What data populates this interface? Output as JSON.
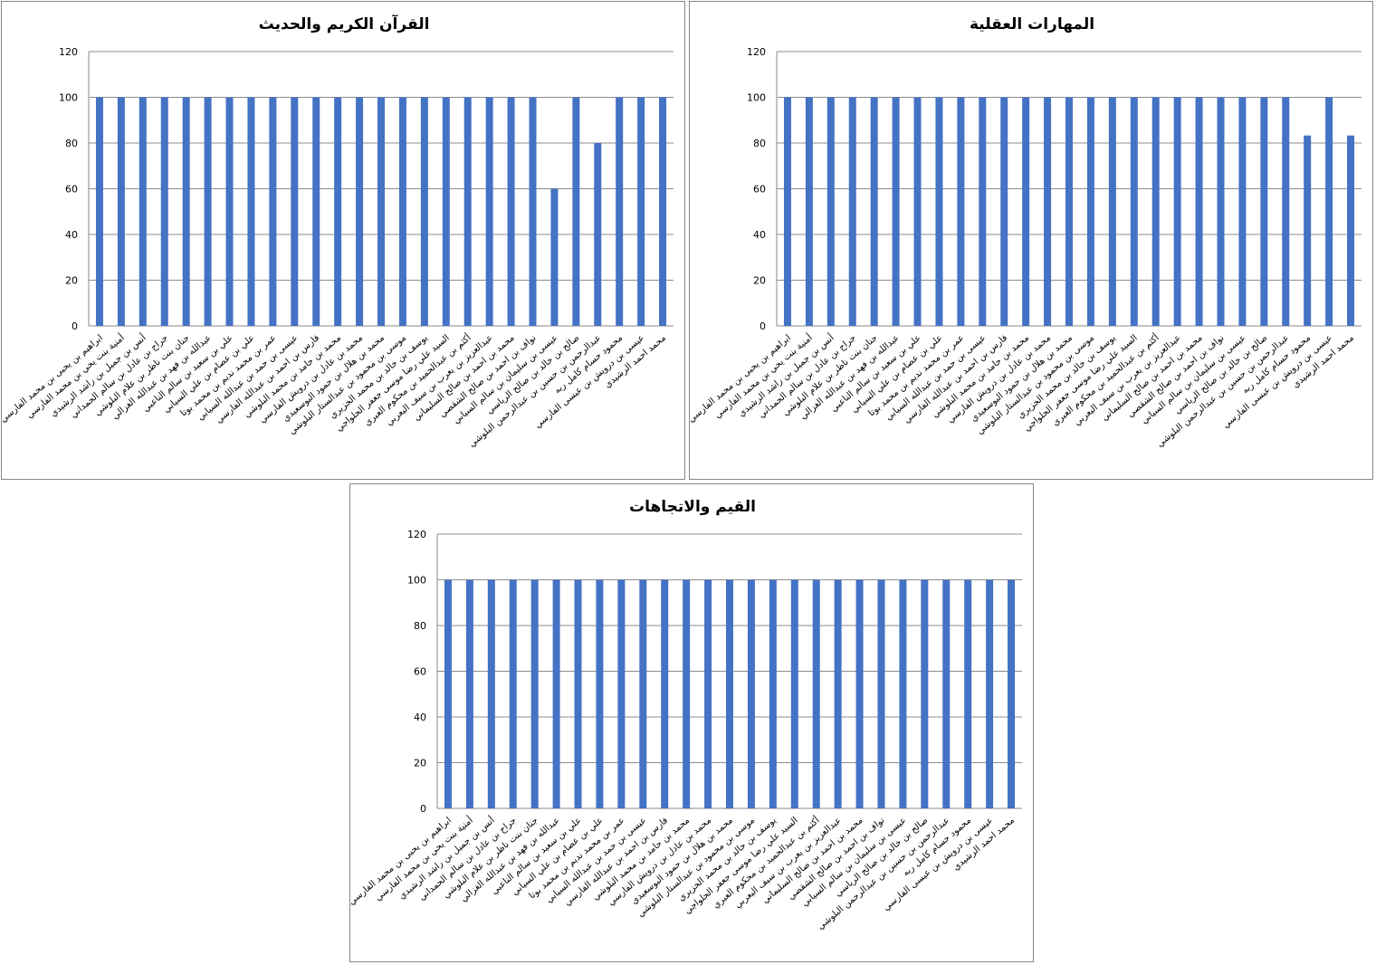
{
  "chart_data": [
    {
      "type": "bar",
      "title": "القرآن الكريم والحديث",
      "ylim": [
        0,
        120
      ],
      "yticks": [
        0,
        20,
        40,
        60,
        80,
        100,
        120
      ],
      "grid": true,
      "color": "#4472C4",
      "categories": [
        "ابراهيم بن يحيى بن محمد الفارسي",
        "أمنية بنت يحي بن محمد الفارسي",
        "أنس بن جميل بن راشد الرشيدي",
        "جراح بن عادل بن سالم الحمداني",
        "جنان بنت ناظر بن علام البلوشي",
        "عبدالله بن فهد بن عبدالله الغزالي",
        "علي بن سعيد بن سالم الناعبي",
        "علي بن عصام بن علي السيابي",
        "عمر بن محمد نديم بن محمد بوتا",
        "عيسى بن حمد بن عبدالله السيابي",
        "فارس بن احمد بن عبدالله الفارسي",
        "محمد بن حامد بن محمد البلوشي",
        "محمد بن عادل بن درويش الفارسي",
        "محمد بن هلال بن حمود البوسعيدي",
        "موسى بن محمود بن عبدالستار البلوشي",
        "يوسف بن خالد بن محمد الخزيري",
        "السيد علي رضا موسى جعفر الحلواجي",
        "أكثم بن عبدالحميد بن محكوم العبري",
        "عبدالعزيز بن يعرب بن سيف اليعربي",
        "محمد بن احمد بن صالح السليماني",
        "نواف بن احمد بن صالح الشقصي",
        "عيسى بن سليمان بن سالم السيابي",
        "صالح بن خالد بن صالح الرياسي",
        "عبدالرحمن بن حسين بن عبدالرحمن البلوشي",
        "محمود حسام كامل ربه",
        "عيسى بن درويش بن عيسى الفارسي",
        "محمد احمد الرشيدي"
      ],
      "values": [
        100,
        100,
        100,
        100,
        100,
        100,
        100,
        100,
        100,
        100,
        100,
        100,
        100,
        100,
        100,
        100,
        100,
        100,
        100,
        100,
        100,
        60,
        100,
        80,
        100,
        100,
        100
      ]
    },
    {
      "type": "bar",
      "title": "المهارات العقلية",
      "ylim": [
        0,
        120
      ],
      "yticks": [
        0,
        20,
        40,
        60,
        80,
        100,
        120
      ],
      "grid": true,
      "color": "#4472C4",
      "categories": [
        "ابراهيم بن يحيى بن محمد الفارسي",
        "أمنية بنت يحي بن محمد الفارسي",
        "أنس بن جميل بن راشد الرشيدي",
        "جراح بن عادل بن سالم الحمداني",
        "جنان بنت ناظر بن علام البلوشي",
        "عبدالله بن فهد بن عبدالله الغزالي",
        "علي بن سعيد بن سالم الناعبي",
        "علي بن عصام بن علي السيابي",
        "عمر بن محمد نديم بن محمد بوتا",
        "عيسى بن حمد بن عبدالله السيابي",
        "فارس بن احمد بن عبدالله الفارسي",
        "محمد بن حامد بن محمد البلوشي",
        "محمد بن عادل بن درويش الفارسي",
        "محمد بن هلال بن حمود البوسعيدي",
        "موسى بن محمود بن عبدالستار البلوشي",
        "يوسف بن خالد بن محمد الخزيري",
        "السيد علي رضا موسى جعفر الحلواجي",
        "أكثم بن عبدالحميد بن محكوم العبري",
        "عبدالعزيز بن يعرب بن سيف اليعربي",
        "محمد بن احمد بن صالح السليماني",
        "نواف بن احمد بن صالح الشقصي",
        "عيسى بن سليمان بن سالم السيابي",
        "صالح بن خالد بن صالح الرياسي",
        "عبدالرحمن بن حسين بن عبدالرحمن البلوشي",
        "محمود حسام كامل ربه",
        "عيسى بن درويش بن عيسى الفارسي",
        "محمد احمد الرشيدي"
      ],
      "values": [
        100,
        100,
        100,
        100,
        100,
        100,
        100,
        100,
        100,
        100,
        100,
        100,
        100,
        100,
        100,
        100,
        100,
        100,
        100,
        100,
        100,
        100,
        100,
        100,
        83.3,
        100,
        83.3
      ]
    },
    {
      "type": "bar",
      "title": "القيم والاتجاهات",
      "ylim": [
        0,
        120
      ],
      "yticks": [
        0,
        20,
        40,
        60,
        80,
        100,
        120
      ],
      "grid": true,
      "color": "#4472C4",
      "categories": [
        "ابراهيم بن يحيى بن محمد الفارسي",
        "أمنية بنت يحي بن محمد الفارسي",
        "أنس بن جميل بن راشد الرشيدي",
        "جراح بن عادل بن سالم الحمداني",
        "جنان بنت ناظر بن علام البلوشي",
        "عبدالله بن فهد بن عبدالله الغزالي",
        "علي بن سعيد بن سالم الناعبي",
        "علي بن عصام بن علي السيابي",
        "عمر بن محمد نديم بن محمد بوتا",
        "عيسى بن حمد بن عبدالله السيابي",
        "فارس بن احمد بن عبدالله الفارسي",
        "محمد بن حامد بن محمد البلوشي",
        "محمد بن عادل بن درويش الفارسي",
        "محمد بن هلال بن حمود البوسعيدي",
        "موسى بن محمود بن عبدالستار البلوشي",
        "يوسف بن خالد بن محمد الخزيري",
        "السيد علي رضا موسى جعفر الحلواجي",
        "أكثم بن عبدالحميد بن محكوم العبري",
        "عبدالعزيز بن يعرب بن سيف اليعربي",
        "محمد بن احمد بن صالح السليماني",
        "نواف بن احمد بن صالح الشقصي",
        "عيسى بن سليمان بن سالم السيابي",
        "صالح بن خالد بن صالح الرياسي",
        "عبدالرحمن بن حسين بن عبدالرحمن البلوشي",
        "محمود حسام كامل ربه",
        "عيسى بن درويش بن عيسى الفارسي",
        "محمد احمد الرشيدي"
      ],
      "values": [
        100,
        100,
        100,
        100,
        100,
        100,
        100,
        100,
        100,
        100,
        100,
        100,
        100,
        100,
        100,
        100,
        100,
        100,
        100,
        100,
        100,
        100,
        100,
        100,
        100,
        100,
        100
      ]
    }
  ]
}
